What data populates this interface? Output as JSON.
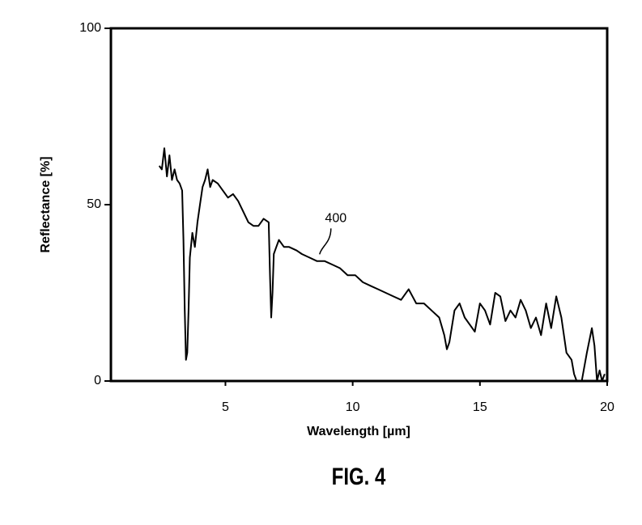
{
  "chart_data": {
    "type": "line",
    "xlabel": "Wavelength [µm]",
    "ylabel": "Reflectance [%]",
    "caption": "FIG. 4",
    "x": [
      2.4,
      2.5,
      2.6,
      2.7,
      2.8,
      2.9,
      3.0,
      3.1,
      3.2,
      3.3,
      3.35,
      3.4,
      3.45,
      3.5,
      3.55,
      3.6,
      3.7,
      3.8,
      3.9,
      4.0,
      4.1,
      4.2,
      4.3,
      4.4,
      4.5,
      4.7,
      4.9,
      5.1,
      5.3,
      5.5,
      5.7,
      5.9,
      6.1,
      6.3,
      6.5,
      6.7,
      6.75,
      6.8,
      6.85,
      6.9,
      7.0,
      7.1,
      7.3,
      7.5,
      7.8,
      8.0,
      8.3,
      8.6,
      8.9,
      9.2,
      9.5,
      9.8,
      10.1,
      10.4,
      10.7,
      11.0,
      11.3,
      11.6,
      11.9,
      12.2,
      12.5,
      12.8,
      13.1,
      13.4,
      13.6,
      13.7,
      13.8,
      14.0,
      14.2,
      14.4,
      14.6,
      14.8,
      15.0,
      15.2,
      15.4,
      15.6,
      15.8,
      16.0,
      16.2,
      16.4,
      16.6,
      16.8,
      17.0,
      17.2,
      17.4,
      17.6,
      17.8,
      18.0,
      18.2,
      18.4,
      18.6,
      18.7,
      18.8,
      19.0,
      19.2,
      19.4,
      19.5,
      19.6,
      19.7,
      19.8,
      19.9
    ],
    "values": [
      61,
      60,
      66,
      58,
      64,
      57,
      60,
      57,
      56,
      54,
      40,
      20,
      6,
      8,
      20,
      35,
      42,
      38,
      45,
      50,
      55,
      57,
      60,
      55,
      57,
      56,
      54,
      52,
      53,
      51,
      48,
      45,
      44,
      44,
      46,
      45,
      30,
      18,
      25,
      36,
      38,
      40,
      38,
      38,
      37,
      36,
      35,
      34,
      34,
      33,
      32,
      30,
      30,
      28,
      27,
      26,
      25,
      24,
      23,
      26,
      22,
      22,
      20,
      18,
      13,
      9,
      11,
      20,
      22,
      18,
      16,
      14,
      22,
      20,
      16,
      25,
      24,
      17,
      20,
      18,
      23,
      20,
      15,
      18,
      13,
      22,
      15,
      24,
      18,
      8,
      6,
      2,
      0,
      0,
      8,
      15,
      10,
      0,
      3,
      0,
      2
    ],
    "color": "#000000",
    "xlim": [
      0.5,
      20
    ],
    "ylim": [
      0,
      100
    ],
    "xticks": [
      5,
      10,
      15,
      20
    ],
    "yticks": [
      0,
      50,
      100
    ],
    "annotations": [
      {
        "text": "400",
        "x": 8.7,
        "y": 35
      }
    ]
  }
}
